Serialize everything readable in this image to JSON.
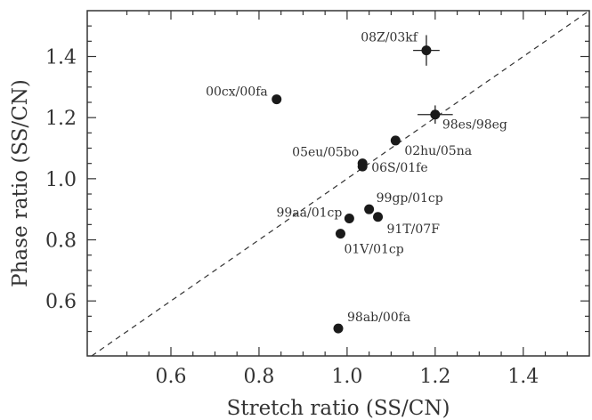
{
  "chart_data": {
    "type": "scatter",
    "xlabel": "Stretch ratio (SS/CN)",
    "ylabel": "Phase ratio (SS/CN)",
    "xlim": [
      0.41,
      1.55
    ],
    "ylim": [
      0.42,
      1.55
    ],
    "xticks": [
      0.6,
      0.8,
      1.0,
      1.2,
      1.4
    ],
    "yticks": [
      0.6,
      0.8,
      1.0,
      1.2,
      1.4
    ],
    "xtick_labels": [
      "0.6",
      "0.8",
      "1.0",
      "1.2",
      "1.4"
    ],
    "ytick_labels": [
      "0.6",
      "0.8",
      "1.0",
      "1.2",
      "1.4"
    ],
    "reference_line": "y = x (dashed)",
    "grid": false,
    "points": [
      {
        "label": "08Z/03kf",
        "x": 1.18,
        "y": 1.42,
        "xerr": 0.03,
        "yerr": 0.05
      },
      {
        "label": "00cx/00fa",
        "x": 0.84,
        "y": 1.26
      },
      {
        "label": "98es/98eg",
        "x": 1.2,
        "y": 1.21,
        "xerr": 0.04,
        "yerr": 0.03
      },
      {
        "label": "02hu/05na",
        "x": 1.11,
        "y": 1.125
      },
      {
        "label": "05eu/05bo",
        "x": 1.035,
        "y": 1.05
      },
      {
        "label": "06S/01fe",
        "x": 1.035,
        "y": 1.04
      },
      {
        "label": "99gp/01cp",
        "x": 1.05,
        "y": 0.9
      },
      {
        "label": "99aa/01cp",
        "x": 1.005,
        "y": 0.87
      },
      {
        "label": "91T/07F",
        "x": 1.07,
        "y": 0.875
      },
      {
        "label": "01V/01cp",
        "x": 0.985,
        "y": 0.82
      },
      {
        "label": "98ab/00fa",
        "x": 0.98,
        "y": 0.51
      }
    ]
  }
}
